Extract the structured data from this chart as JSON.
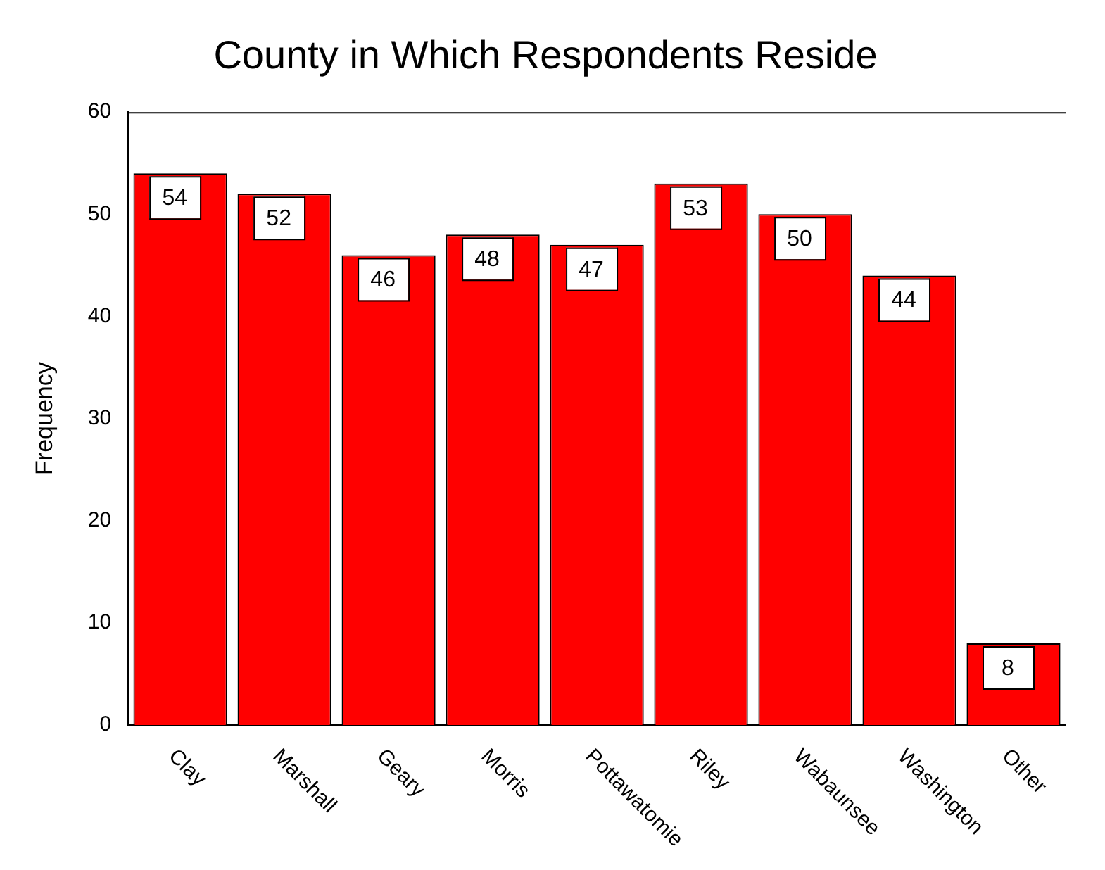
{
  "chart_data": {
    "type": "bar",
    "title": "County in Which Respondents Reside",
    "ylabel": "Frequency",
    "categories": [
      "Clay",
      "Marshall",
      "Geary",
      "Morris",
      "Pottawatomie",
      "Riley",
      "Wabaunsee",
      "Washington",
      "Other"
    ],
    "values": [
      54,
      52,
      46,
      48,
      47,
      53,
      50,
      44,
      8
    ],
    "color": "#ff0000",
    "ylim": [
      0,
      60
    ],
    "yticks": [
      0,
      10,
      20,
      30,
      40,
      50,
      60
    ],
    "grid": false,
    "legend": false,
    "data_labels": true
  }
}
